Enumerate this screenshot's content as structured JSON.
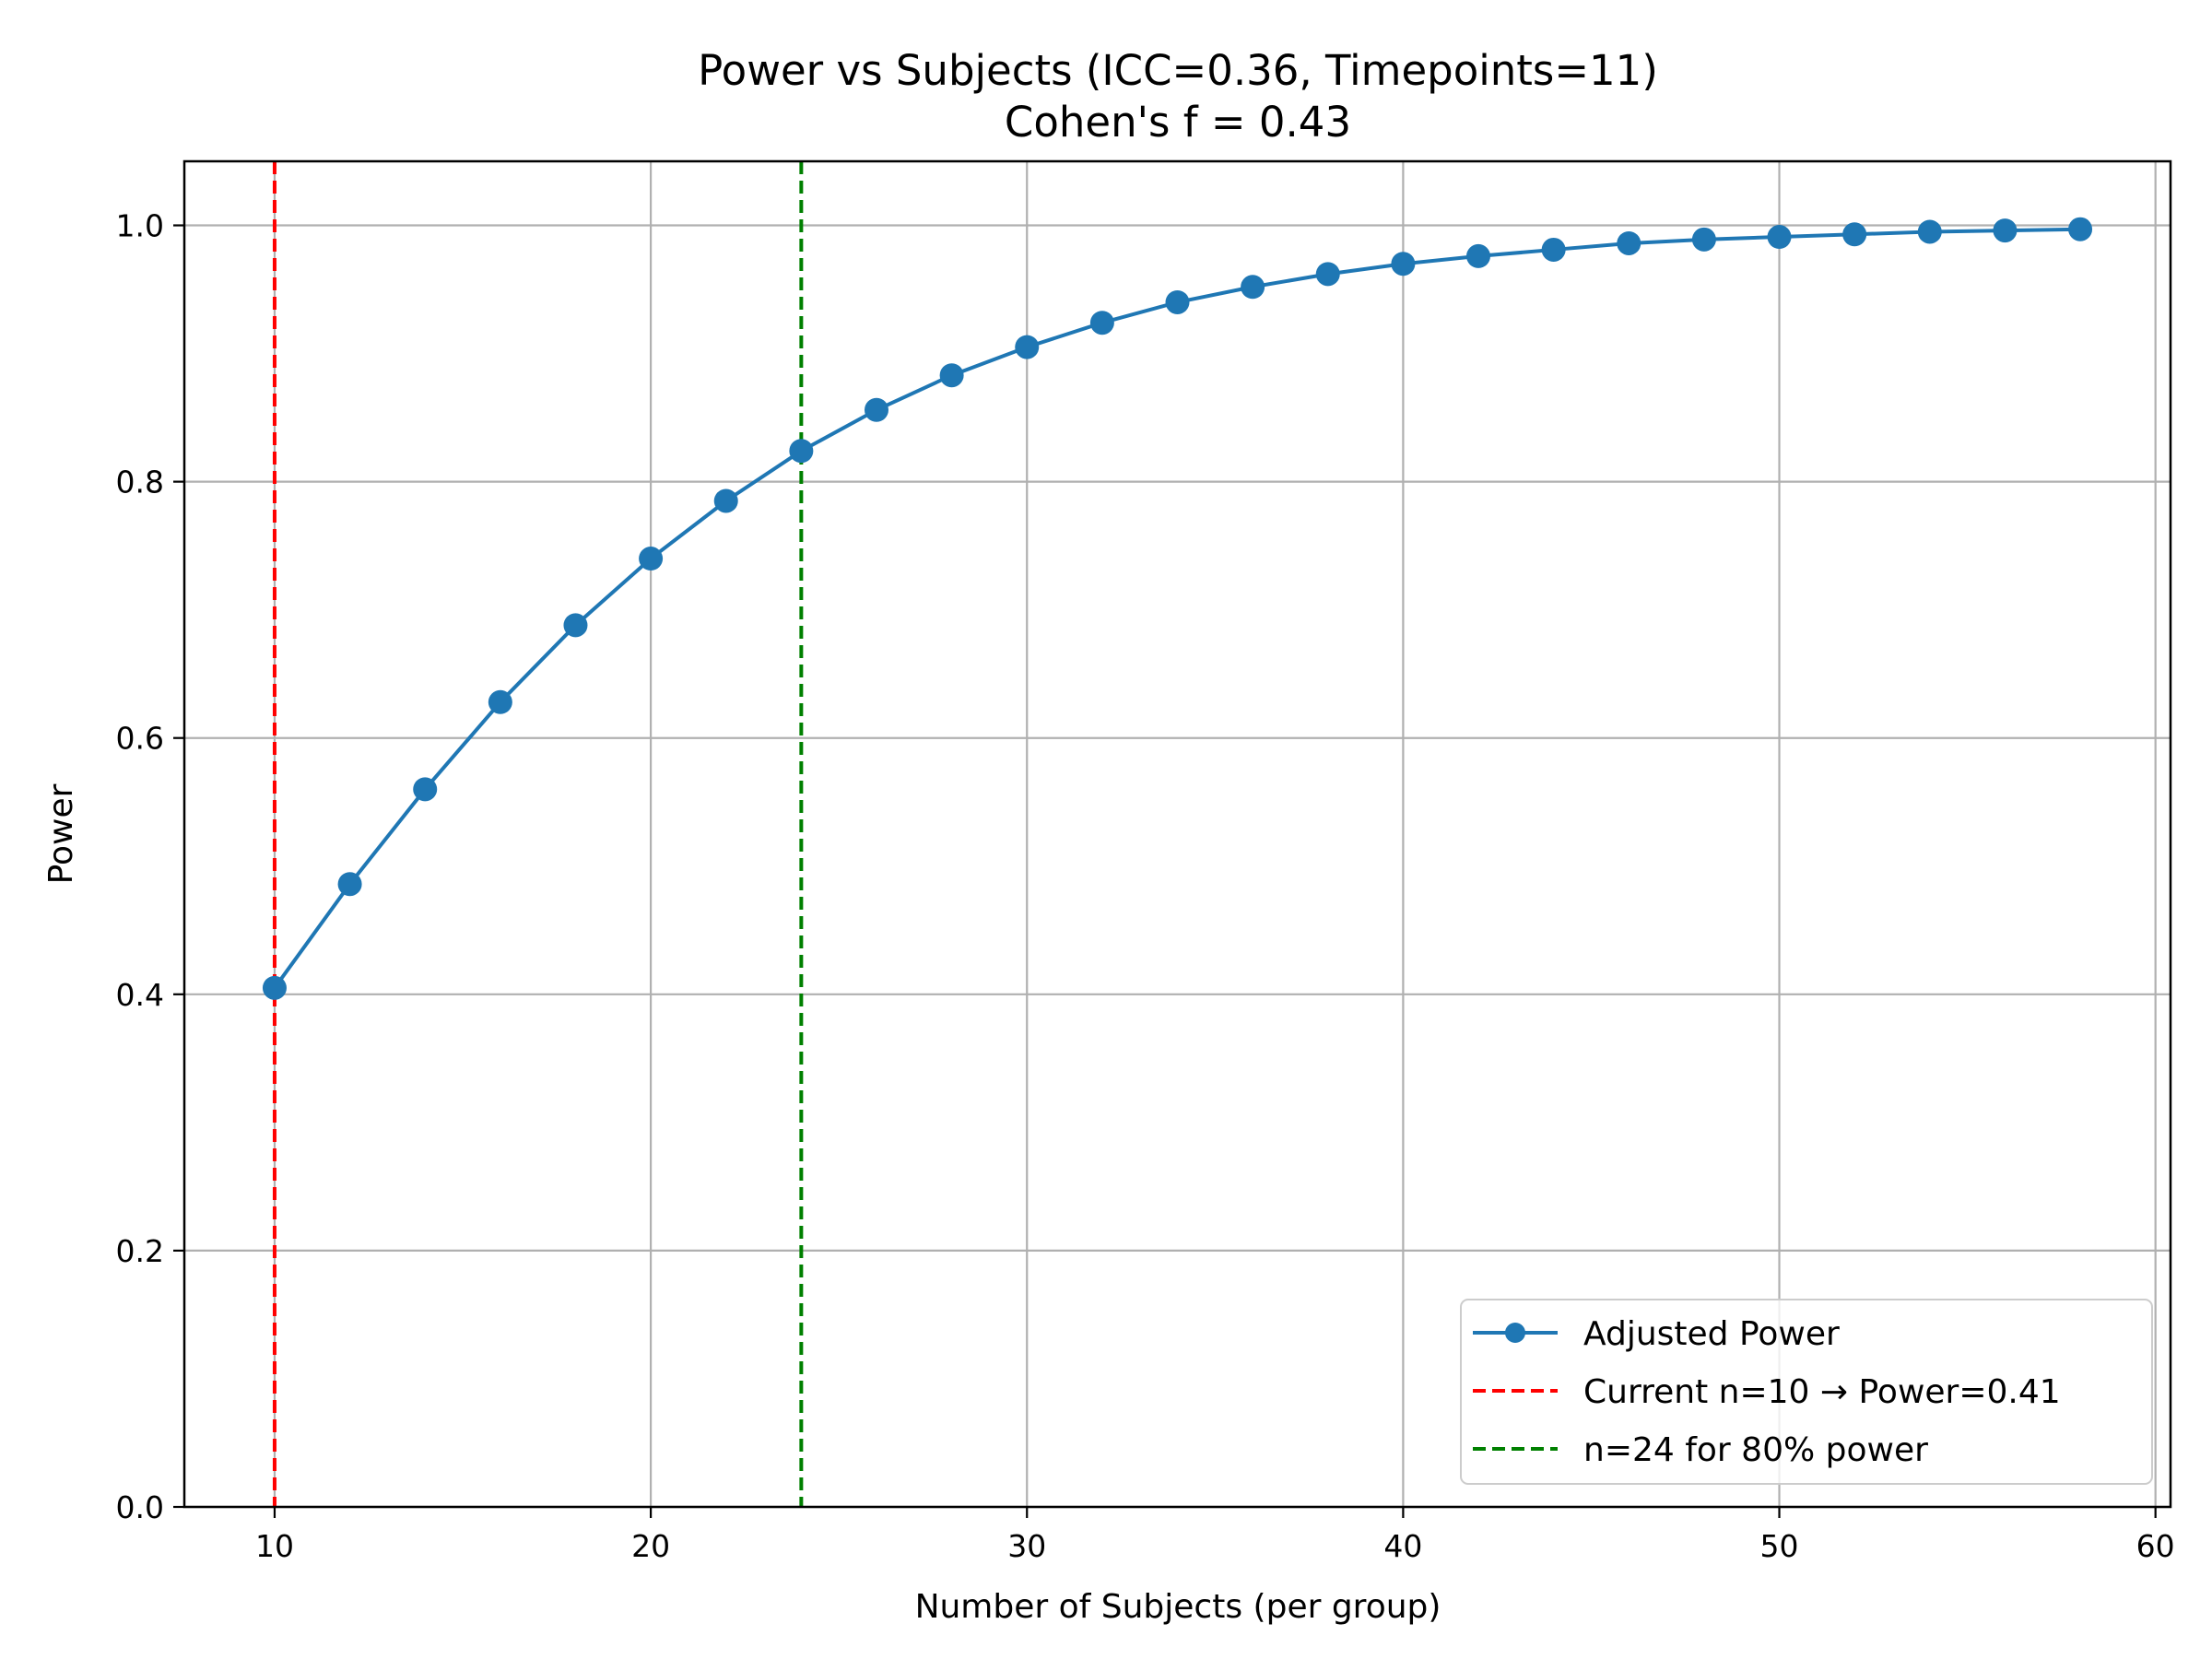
{
  "chart_data": {
    "type": "line",
    "title": "Power vs Subjects (ICC=0.36, Timepoints=11)",
    "subtitle": "Cohen's f = 0.43",
    "xlabel": "Number of Subjects (per group)",
    "ylabel": "Power",
    "xlim": [
      7.6,
      60.4
    ],
    "ylim": [
      0.0,
      1.05
    ],
    "xticks": [
      "10",
      "20",
      "30",
      "40",
      "50",
      "60"
    ],
    "yticks": [
      "0.0",
      "0.2",
      "0.4",
      "0.6",
      "0.8",
      "1.0"
    ],
    "grid": true,
    "legend_position": "lower right",
    "series": [
      {
        "name": "Adjusted Power",
        "color": "#1f77b4",
        "marker": "circle",
        "x": [
          10,
          12,
          14,
          16,
          18,
          20,
          22,
          24,
          26,
          28,
          30,
          32,
          34,
          36,
          38,
          40,
          42,
          44,
          46,
          48,
          50,
          52,
          54,
          56,
          58
        ],
        "y": [
          0.405,
          0.486,
          0.56,
          0.628,
          0.688,
          0.74,
          0.785,
          0.824,
          0.856,
          0.883,
          0.905,
          0.924,
          0.94,
          0.952,
          0.962,
          0.97,
          0.976,
          0.981,
          0.986,
          0.989,
          0.991,
          0.993,
          0.995,
          0.996,
          0.997
        ]
      }
    ],
    "reference_lines": [
      {
        "name": "Current n=10 → Power=0.41",
        "x": 10,
        "color": "#ff0000",
        "style": "dashed"
      },
      {
        "name": "n=24 for 80% power",
        "x": 24,
        "color": "#008000",
        "style": "dashed"
      }
    ]
  }
}
